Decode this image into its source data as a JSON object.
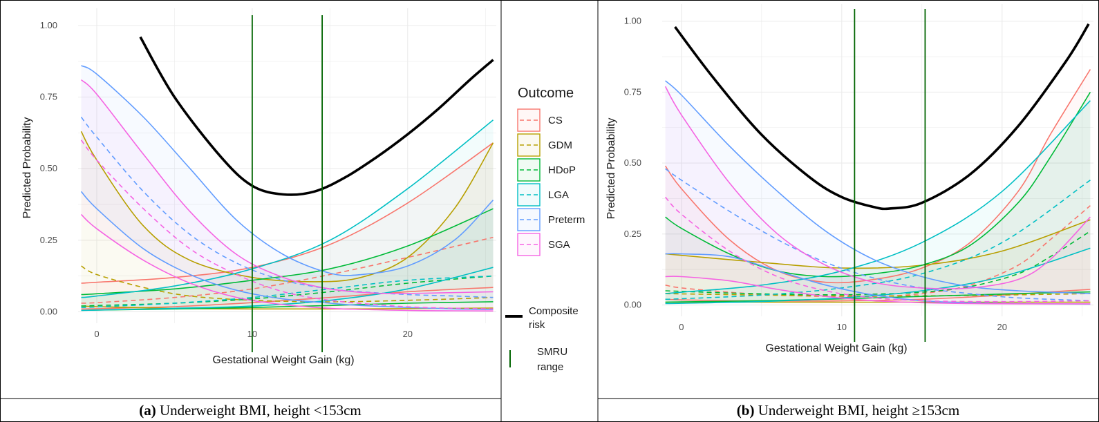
{
  "chart_data": [
    {
      "type": "line",
      "caption_label": "(a)",
      "caption_text": " Underweight BMI, height <153cm",
      "xlabel": "Gestational Weight Gain (kg)",
      "ylabel": "Predicted Probability",
      "xlim": [
        -1.2,
        25.7
      ],
      "ylim": [
        -0.04,
        1.06
      ],
      "xticks": [
        0,
        10,
        20
      ],
      "yticks": [
        0.0,
        0.25,
        0.5,
        0.75,
        1.0
      ],
      "ytick_labels": [
        "0.00",
        "0.25",
        "0.50",
        "0.75",
        "1.00"
      ],
      "grid": true,
      "smru_range": [
        10,
        14.5
      ],
      "composite": {
        "x": [
          2.8,
          5,
          8,
          10,
          12,
          14,
          16,
          18,
          20,
          22,
          24,
          25.5
        ],
        "y": [
          0.96,
          0.75,
          0.54,
          0.44,
          0.41,
          0.42,
          0.47,
          0.54,
          0.62,
          0.71,
          0.81,
          0.88
        ]
      },
      "series": [
        {
          "name": "CS",
          "color": "#F8766D",
          "x": [
            -1,
            0,
            5,
            10,
            15,
            20,
            25.5
          ],
          "solid": [
            0.1,
            0.103,
            0.12,
            0.155,
            0.235,
            0.38,
            0.59
          ],
          "dashed": [
            0.03,
            0.032,
            0.05,
            0.08,
            0.13,
            0.19,
            0.26
          ],
          "lower": [
            0.01,
            0.011,
            0.018,
            0.032,
            0.05,
            0.07,
            0.085
          ]
        },
        {
          "name": "GDM",
          "color": "#B79F00",
          "x": [
            -1,
            0,
            3,
            6,
            10,
            14,
            17,
            20,
            23,
            25.5
          ],
          "solid": [
            0.63,
            0.53,
            0.3,
            0.18,
            0.12,
            0.105,
            0.12,
            0.19,
            0.36,
            0.59
          ],
          "dashed": [
            0.16,
            0.13,
            0.085,
            0.055,
            0.04,
            0.035,
            0.036,
            0.04,
            0.045,
            0.05
          ],
          "lower": [
            0.02,
            0.018,
            0.014,
            0.011,
            0.01,
            0.01,
            0.01,
            0.011,
            0.012,
            0.013
          ]
        },
        {
          "name": "HDoP",
          "color": "#00BA38",
          "x": [
            -1,
            0,
            5,
            10,
            15,
            20,
            25.5
          ],
          "solid": [
            0.06,
            0.063,
            0.08,
            0.11,
            0.15,
            0.23,
            0.36
          ],
          "dashed": [
            0.02,
            0.022,
            0.03,
            0.045,
            0.07,
            0.1,
            0.125
          ],
          "lower": [
            0.005,
            0.006,
            0.01,
            0.015,
            0.022,
            0.03,
            0.035
          ]
        },
        {
          "name": "LGA",
          "color": "#00BFC4",
          "x": [
            -1,
            0,
            5,
            10,
            15,
            20,
            25.5
          ],
          "solid": [
            0.05,
            0.055,
            0.09,
            0.15,
            0.25,
            0.43,
            0.67
          ],
          "dashed": [
            0.015,
            0.017,
            0.03,
            0.05,
            0.08,
            0.11,
            0.125
          ],
          "lower": [
            0.005,
            0.006,
            0.012,
            0.02,
            0.04,
            0.08,
            0.155
          ]
        },
        {
          "name": "Preterm",
          "color": "#619CFF",
          "x": [
            -1,
            0,
            3,
            6,
            9,
            12,
            15,
            17,
            20,
            23,
            25.5
          ],
          "solid": [
            0.86,
            0.83,
            0.68,
            0.5,
            0.32,
            0.2,
            0.135,
            0.13,
            0.16,
            0.25,
            0.39
          ],
          "dashed": [
            0.68,
            0.61,
            0.42,
            0.27,
            0.17,
            0.11,
            0.08,
            0.07,
            0.06,
            0.055,
            0.05
          ],
          "lower": [
            0.42,
            0.36,
            0.22,
            0.13,
            0.075,
            0.045,
            0.03,
            0.022,
            0.015,
            0.01,
            0.008
          ]
        },
        {
          "name": "SGA",
          "color": "#F564E3",
          "x": [
            -1,
            0,
            3,
            6,
            9,
            12,
            15,
            18,
            21,
            25.5
          ],
          "solid": [
            0.81,
            0.76,
            0.55,
            0.35,
            0.2,
            0.12,
            0.08,
            0.065,
            0.065,
            0.07
          ],
          "dashed": [
            0.6,
            0.53,
            0.36,
            0.22,
            0.13,
            0.07,
            0.04,
            0.025,
            0.015,
            0.01
          ],
          "lower": [
            0.34,
            0.29,
            0.18,
            0.1,
            0.05,
            0.025,
            0.012,
            0.007,
            0.004,
            0.003
          ]
        }
      ]
    },
    {
      "type": "line",
      "caption_label": "(b)",
      "caption_text": " Underweight BMI, height ≥153cm",
      "xlabel": "Gestational Weight Gain (kg)",
      "ylabel": "Predicted Probability",
      "xlim": [
        -1.2,
        25.7
      ],
      "ylim": [
        -0.04,
        1.06
      ],
      "xticks": [
        0,
        10,
        20
      ],
      "yticks": [
        0.0,
        0.25,
        0.5,
        0.75,
        1.0
      ],
      "ytick_labels": [
        "0.00",
        "0.25",
        "0.50",
        "0.75",
        "1.00"
      ],
      "grid": true,
      "smru_range": [
        10.8,
        15.2
      ],
      "composite": {
        "x": [
          -0.4,
          2,
          5,
          8,
          10,
          12,
          13,
          15,
          18,
          21,
          24,
          25.4
        ],
        "y": [
          0.98,
          0.8,
          0.6,
          0.45,
          0.38,
          0.345,
          0.34,
          0.36,
          0.46,
          0.63,
          0.86,
          0.99
        ]
      },
      "series": [
        {
          "name": "CS",
          "color": "#F8766D",
          "x": [
            -1,
            0,
            3,
            6,
            9,
            12,
            15,
            18,
            21,
            23,
            25.5
          ],
          "solid": [
            0.49,
            0.41,
            0.23,
            0.12,
            0.08,
            0.09,
            0.13,
            0.22,
            0.4,
            0.6,
            0.83
          ],
          "dashed": [
            0.07,
            0.06,
            0.045,
            0.035,
            0.03,
            0.03,
            0.04,
            0.07,
            0.14,
            0.23,
            0.35
          ],
          "lower": [
            0.02,
            0.018,
            0.015,
            0.014,
            0.014,
            0.016,
            0.02,
            0.028,
            0.038,
            0.046,
            0.055
          ]
        },
        {
          "name": "GDM",
          "color": "#B79F00",
          "x": [
            -1,
            0,
            5,
            10,
            15,
            20,
            25.5
          ],
          "solid": [
            0.18,
            0.175,
            0.15,
            0.13,
            0.14,
            0.19,
            0.3
          ],
          "dashed": [
            0.04,
            0.039,
            0.035,
            0.032,
            0.032,
            0.035,
            0.04
          ],
          "lower": [
            0.01,
            0.01,
            0.01,
            0.01,
            0.01,
            0.01,
            0.01
          ]
        },
        {
          "name": "HDoP",
          "color": "#00BA38",
          "x": [
            -1,
            0,
            3,
            6,
            9,
            12,
            15,
            18,
            21,
            23,
            25.5
          ],
          "solid": [
            0.31,
            0.27,
            0.18,
            0.12,
            0.1,
            0.11,
            0.14,
            0.21,
            0.36,
            0.52,
            0.75
          ],
          "dashed": [
            0.05,
            0.048,
            0.042,
            0.038,
            0.036,
            0.038,
            0.045,
            0.065,
            0.11,
            0.17,
            0.26
          ],
          "lower": [
            0.01,
            0.011,
            0.013,
            0.016,
            0.02,
            0.025,
            0.03,
            0.035,
            0.04,
            0.043,
            0.046
          ]
        },
        {
          "name": "LGA",
          "color": "#00BFC4",
          "x": [
            -1,
            0,
            5,
            10,
            15,
            20,
            25.5
          ],
          "solid": [
            0.04,
            0.045,
            0.07,
            0.12,
            0.22,
            0.4,
            0.72
          ],
          "dashed": [
            0.02,
            0.022,
            0.035,
            0.06,
            0.11,
            0.22,
            0.44
          ],
          "lower": [
            0.005,
            0.006,
            0.012,
            0.025,
            0.05,
            0.1,
            0.2
          ]
        },
        {
          "name": "Preterm",
          "color": "#619CFF",
          "x": [
            -1,
            0,
            3,
            6,
            9,
            12,
            15,
            18,
            21,
            25.5
          ],
          "solid": [
            0.79,
            0.74,
            0.56,
            0.4,
            0.26,
            0.16,
            0.1,
            0.065,
            0.05,
            0.04
          ],
          "dashed": [
            0.48,
            0.44,
            0.33,
            0.23,
            0.15,
            0.095,
            0.06,
            0.04,
            0.025,
            0.015
          ],
          "lower": [
            0.18,
            0.18,
            0.17,
            0.12,
            0.07,
            0.035,
            0.015,
            0.008,
            0.005,
            0.003
          ]
        },
        {
          "name": "SGA",
          "color": "#F564E3",
          "x": [
            -1,
            0,
            3,
            6,
            9,
            12,
            15,
            18,
            21,
            23,
            25.5
          ],
          "solid": [
            0.77,
            0.67,
            0.43,
            0.25,
            0.14,
            0.08,
            0.06,
            0.06,
            0.09,
            0.16,
            0.31
          ],
          "dashed": [
            0.38,
            0.32,
            0.19,
            0.1,
            0.05,
            0.025,
            0.015,
            0.012,
            0.012,
            0.013,
            0.015
          ],
          "lower": [
            0.1,
            0.1,
            0.085,
            0.055,
            0.03,
            0.015,
            0.008,
            0.005,
            0.004,
            0.004,
            0.004
          ]
        }
      ]
    }
  ],
  "legend": {
    "title": "Outcome",
    "items": [
      {
        "label": "CS",
        "color": "#F8766D"
      },
      {
        "label": "GDM",
        "color": "#B79F00"
      },
      {
        "label": "HDoP",
        "color": "#00BA38"
      },
      {
        "label": "LGA",
        "color": "#00BFC4"
      },
      {
        "label": "Preterm",
        "color": "#619CFF"
      },
      {
        "label": "SGA",
        "color": "#F564E3"
      }
    ],
    "composite_label_1": "Composite",
    "composite_label_2": "risk",
    "smru_label_1": "SMRU",
    "smru_label_2": "range",
    "composite_color": "#000000",
    "smru_color": "#006400"
  }
}
